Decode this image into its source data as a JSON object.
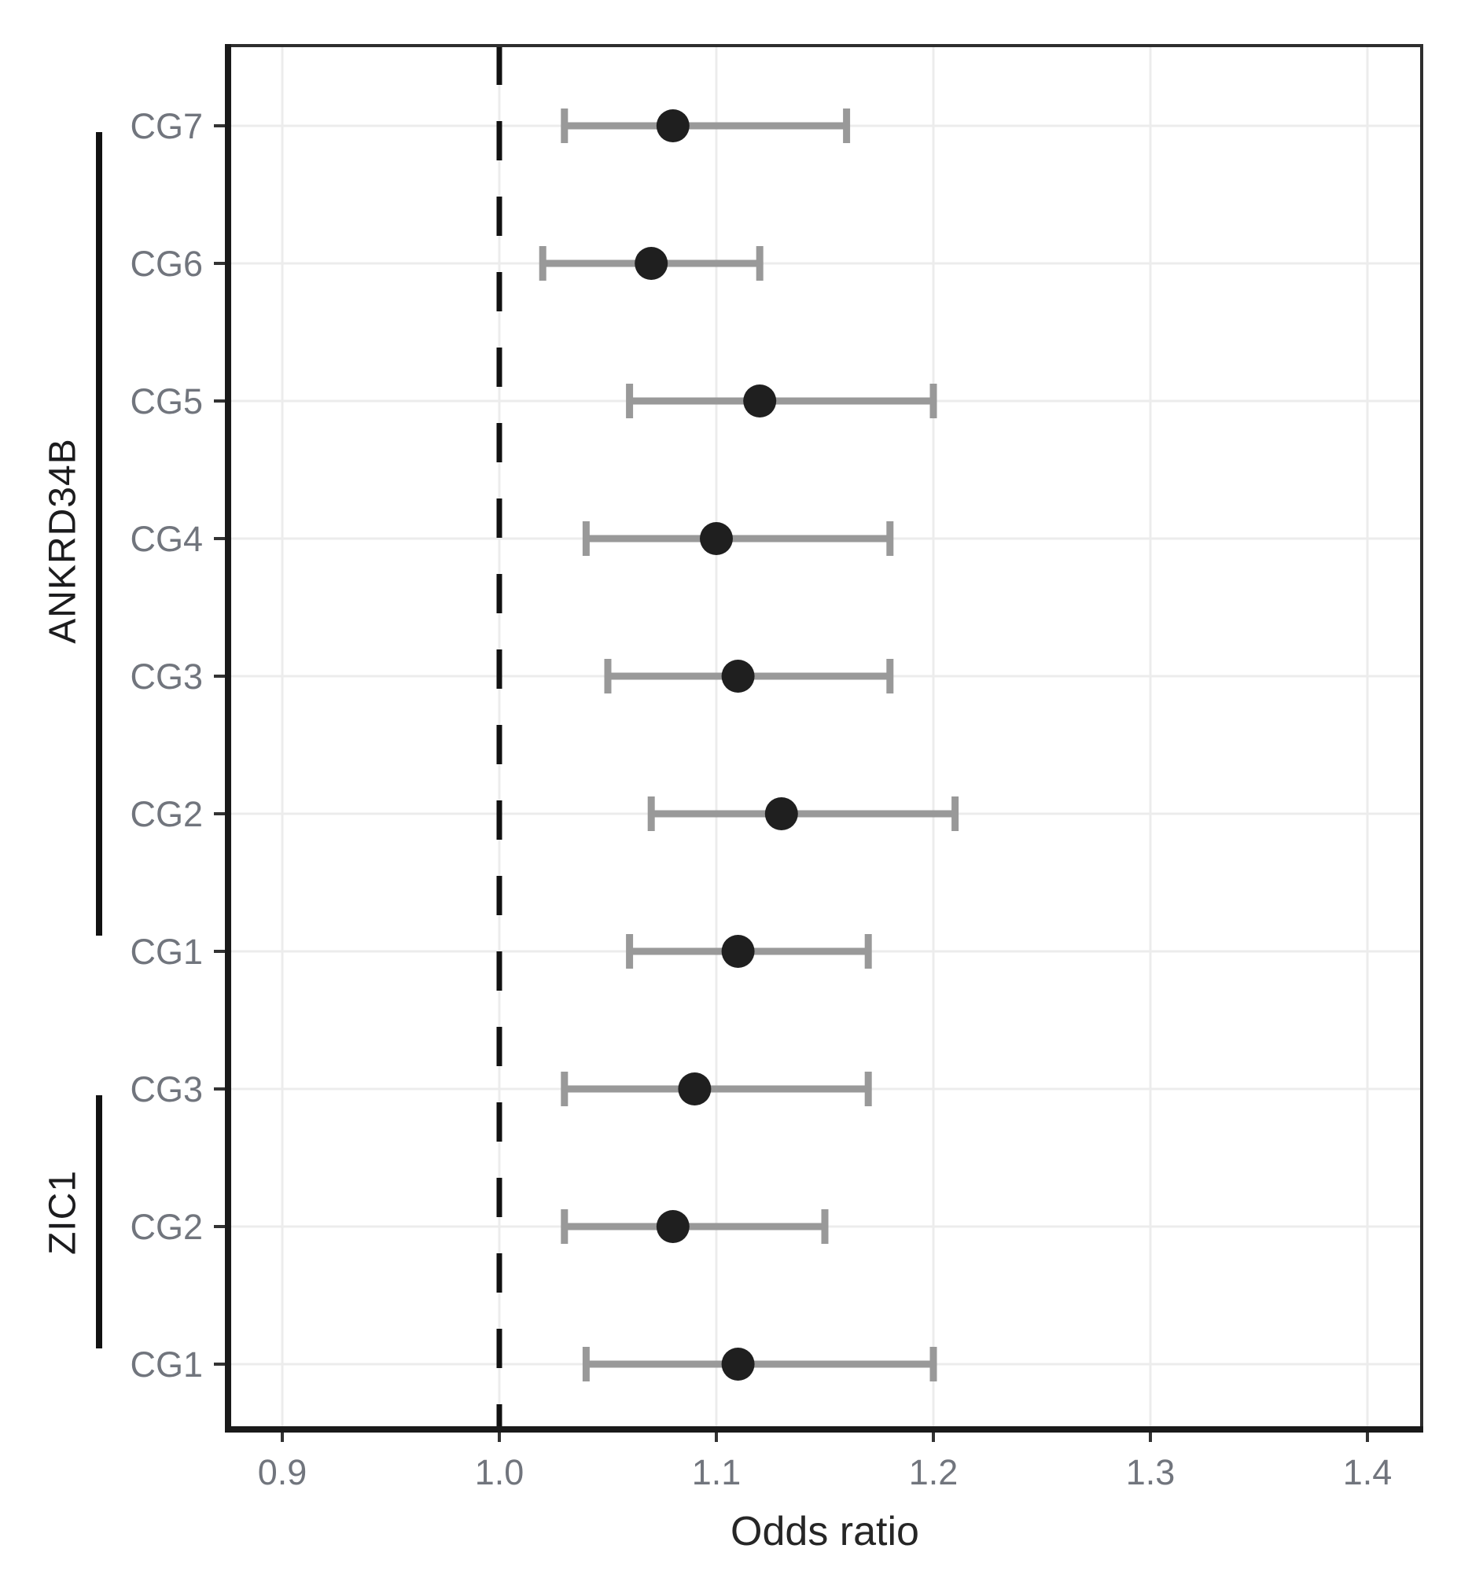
{
  "chart_data": {
    "type": "forest",
    "title": "",
    "xlabel": "Odds ratio",
    "x_ticks": [
      0.9,
      1.0,
      1.1,
      1.2,
      1.3,
      1.4
    ],
    "xlim": [
      0.875,
      1.425
    ],
    "reference_line": 1.0,
    "grid": "on",
    "legend": "none",
    "groups": [
      {
        "gene": "ANKRD34B",
        "rows": [
          {
            "label": "CG7",
            "or": 1.08,
            "ci_low": 1.03,
            "ci_high": 1.16
          },
          {
            "label": "CG6",
            "or": 1.07,
            "ci_low": 1.02,
            "ci_high": 1.12
          },
          {
            "label": "CG5",
            "or": 1.12,
            "ci_low": 1.06,
            "ci_high": 1.2
          },
          {
            "label": "CG4",
            "or": 1.1,
            "ci_low": 1.04,
            "ci_high": 1.18
          },
          {
            "label": "CG3",
            "or": 1.11,
            "ci_low": 1.05,
            "ci_high": 1.18
          },
          {
            "label": "CG2",
            "or": 1.13,
            "ci_low": 1.07,
            "ci_high": 1.21
          },
          {
            "label": "CG1",
            "or": 1.11,
            "ci_low": 1.06,
            "ci_high": 1.17
          }
        ]
      },
      {
        "gene": "ZIC1",
        "rows": [
          {
            "label": "CG3",
            "or": 1.09,
            "ci_low": 1.03,
            "ci_high": 1.17
          },
          {
            "label": "CG2",
            "or": 1.08,
            "ci_low": 1.03,
            "ci_high": 1.15
          },
          {
            "label": "CG1",
            "or": 1.11,
            "ci_low": 1.04,
            "ci_high": 1.2
          }
        ]
      }
    ]
  },
  "colors": {
    "axis_text": "#71757d",
    "gene_text": "#1c1c1e",
    "grid": "#ececec",
    "error_bar": "#999999",
    "point": "#1f1f1f",
    "reference_line": "#111111",
    "panel_border": "#2e2e2e",
    "tick_mark": "#333333",
    "bracket": "#111111"
  }
}
